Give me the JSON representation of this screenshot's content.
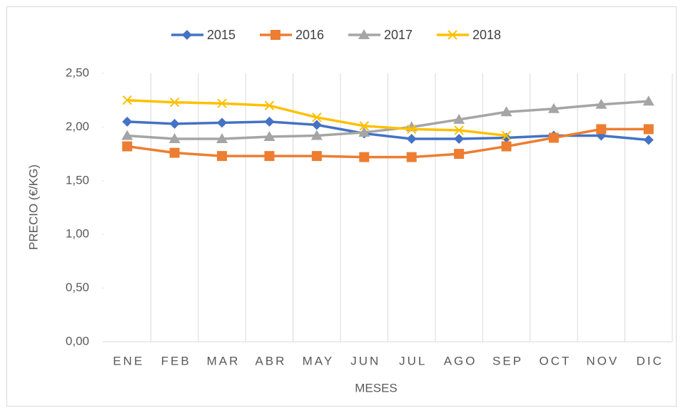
{
  "chart_data": {
    "type": "line",
    "x_label": "MESES",
    "y_label": "PRECIO (€/KG)",
    "categories": [
      "ENE",
      "FEB",
      "MAR",
      "ABR",
      "MAY",
      "JUN",
      "JUL",
      "AGO",
      "SEP",
      "OCT",
      "NOV",
      "DIC"
    ],
    "series": [
      {
        "name": "2015",
        "color": "#4472c4",
        "marker": "diamond",
        "values": [
          2.05,
          2.03,
          2.04,
          2.05,
          2.02,
          1.94,
          1.89,
          1.89,
          1.9,
          1.92,
          1.92,
          1.88
        ]
      },
      {
        "name": "2016",
        "color": "#ed7d31",
        "marker": "square",
        "values": [
          1.82,
          1.76,
          1.73,
          1.73,
          1.73,
          1.72,
          1.72,
          1.75,
          1.82,
          1.9,
          1.98,
          1.98
        ]
      },
      {
        "name": "2017",
        "color": "#a5a5a5",
        "marker": "triangle",
        "values": [
          1.92,
          1.89,
          1.89,
          1.91,
          1.92,
          1.95,
          2.0,
          2.07,
          2.14,
          2.17,
          2.21,
          2.24
        ]
      },
      {
        "name": "2018",
        "color": "#ffc000",
        "marker": "x",
        "values": [
          2.25,
          2.23,
          2.22,
          2.2,
          2.09,
          2.01,
          1.98,
          1.97,
          1.92,
          null,
          null,
          null
        ]
      }
    ],
    "ylim": [
      0,
      2.5
    ],
    "yticks": [
      {
        "value": 0,
        "label": "0,00"
      },
      {
        "value": 0.5,
        "label": "0,50"
      },
      {
        "value": 1,
        "label": "1,00"
      },
      {
        "value": 1.5,
        "label": "1,50"
      },
      {
        "value": 2,
        "label": "2,00"
      },
      {
        "value": 2.5,
        "label": "2,50"
      }
    ],
    "vertical_grid": true,
    "legend": "top"
  }
}
